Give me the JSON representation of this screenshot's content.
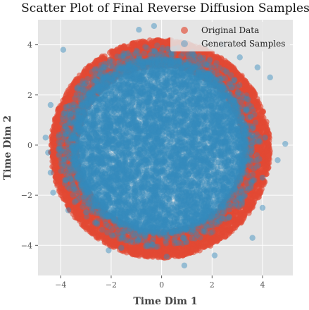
{
  "chart_data": {
    "type": "scatter",
    "title": "Scatter Plot of Final Reverse Diffusion Samples",
    "xlabel": "Time Dim 1",
    "ylabel": "Time Dim 2",
    "xlim": [
      -4.9,
      5.2
    ],
    "ylim": [
      -5.2,
      5.0
    ],
    "xticks": [
      -4,
      -2,
      0,
      2,
      4
    ],
    "yticks": [
      -4,
      -2,
      0,
      2,
      4
    ],
    "grid": true,
    "legend_position": "top-right",
    "series": [
      {
        "name": "Original Data",
        "color": "#E24A33",
        "distribution": "ring",
        "center": [
          -0.05,
          -0.15
        ],
        "ring_inner_radius": 3.3,
        "ring_outer_radius": 4.35,
        "point_count": 6000
      },
      {
        "name": "Generated Samples",
        "color": "#348ABD",
        "distribution": "disk",
        "center": [
          -0.1,
          -0.05
        ],
        "disk_radius": 3.5,
        "point_count": 9000,
        "outliers": [
          [
            -3.9,
            3.8
          ],
          [
            -4.4,
            1.6
          ],
          [
            -4.5,
            -0.3
          ],
          [
            -4.3,
            -1.9
          ],
          [
            -3.7,
            -2.6
          ],
          [
            4.3,
            2.7
          ],
          [
            4.1,
            0.3
          ],
          [
            4.9,
            0.05
          ],
          [
            4.6,
            -0.6
          ],
          [
            4.0,
            -1.3
          ],
          [
            -2.1,
            -4.2
          ],
          [
            -0.9,
            4.6
          ],
          [
            -0.3,
            4.75
          ],
          [
            0.9,
            -4.8
          ],
          [
            2.1,
            -4.4
          ],
          [
            3.6,
            -3.7
          ],
          [
            4.0,
            -2.5
          ],
          [
            3.1,
            3.5
          ],
          [
            -4.6,
            0.3
          ],
          [
            -4.4,
            -1.1
          ],
          [
            2.4,
            4.0
          ],
          [
            3.8,
            3.1
          ],
          [
            -1.6,
            -4.1
          ],
          [
            0.2,
            -4.45
          ]
        ]
      }
    ]
  }
}
